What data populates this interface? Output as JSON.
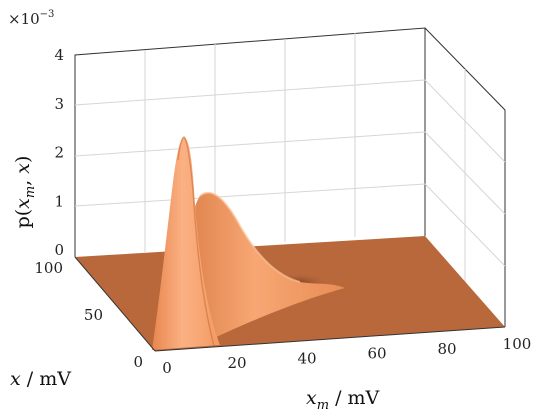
{
  "chart_data": {
    "type": "surface",
    "title": "",
    "xlabel": "x_m / mV",
    "ylabel": "x / mV",
    "zlabel": "p(x_m, x)",
    "z_exponent_label": "×10",
    "z_exponent_power": "−3",
    "xlim": [
      0,
      100
    ],
    "ylim": [
      0,
      100
    ],
    "zlim": [
      0,
      0.004
    ],
    "x_ticks": [
      0,
      20,
      40,
      60,
      80,
      100
    ],
    "y_ticks": [
      0,
      50,
      100
    ],
    "z_ticks": [
      0,
      1,
      2,
      3,
      4
    ],
    "grid": true,
    "surface_color": "#f4a06a",
    "floor_color": "#b9683c",
    "peaks": [
      {
        "x_m": 4,
        "x": 30,
        "p": 0.0024
      },
      {
        "x_m": 12,
        "x": 62,
        "p": 0.00135
      }
    ]
  }
}
